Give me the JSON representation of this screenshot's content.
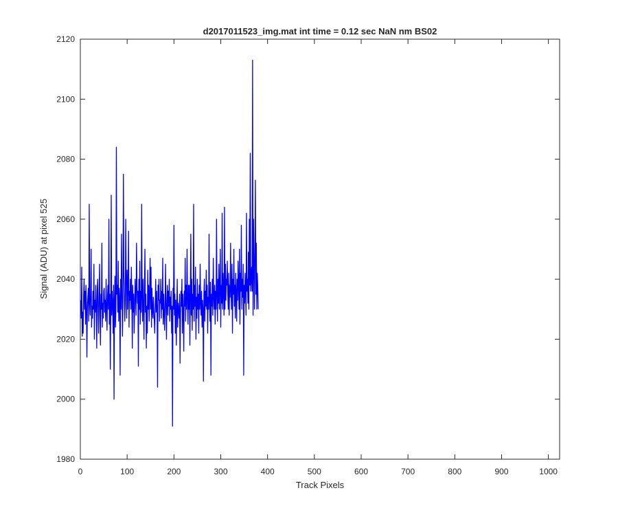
{
  "chart_data": {
    "type": "line",
    "title": "d2017011523_img.mat int time = 0.12 sec  NaN nm BS02",
    "xlabel": "Track Pixels",
    "ylabel": "Signal (ADU) at pixel 525",
    "xlim": [
      0,
      1024
    ],
    "ylim": [
      1980,
      2120
    ],
    "x_ticks": [
      0,
      100,
      200,
      300,
      400,
      500,
      600,
      700,
      800,
      900,
      1000
    ],
    "y_ticks": [
      1980,
      2000,
      2020,
      2040,
      2060,
      2080,
      2100,
      2120
    ],
    "grid": false,
    "series": [
      {
        "color": "#0000ff",
        "x_start": 1,
        "x_step": 1,
        "values": [
          2033,
          2027,
          2044,
          2021,
          2029,
          2022,
          2035,
          2040,
          2030,
          2036,
          2025,
          2038,
          2032,
          2014,
          2030,
          2034,
          2037,
          2026,
          2065,
          2032,
          2028,
          2035,
          2050,
          2024,
          2031,
          2027,
          2036,
          2030,
          2045,
          2020,
          2033,
          2029,
          2038,
          2031,
          2017,
          2036,
          2040,
          2030,
          2022,
          2034,
          2045,
          2028,
          2018,
          2035,
          2030,
          2052,
          2024,
          2032,
          2027,
          2036,
          2037,
          2029,
          2033,
          2026,
          2040,
          2031,
          2023,
          2034,
          2038,
          2030,
          2060,
          2025,
          2035,
          2010,
          2030,
          2068,
          2028,
          2036,
          2032,
          2022,
          2038,
          2000,
          2033,
          2041,
          2024,
          2030,
          2084,
          2035,
          2038,
          2029,
          2046,
          2026,
          2037,
          2034,
          2008,
          2040,
          2030,
          2055,
          2036,
          2021,
          2031,
          2075,
          2042,
          2035,
          2026,
          2033,
          2060,
          2040,
          2027,
          2043,
          2030,
          2037,
          2056,
          2024,
          2036,
          2033,
          2040,
          2030,
          2044,
          2034,
          2017,
          2038,
          2029,
          2035,
          2022,
          2030,
          2040,
          2034,
          2028,
          2052,
          2038,
          2032,
          2036,
          2011,
          2040,
          2030,
          2046,
          2025,
          2036,
          2029,
          2065,
          2034,
          2026,
          2040,
          2031,
          2020,
          2038,
          2050,
          2029,
          2035,
          2017,
          2031,
          2022,
          2043,
          2030,
          2038,
          2026,
          2035,
          2047,
          2030,
          2044,
          2024,
          2037,
          2030,
          2027,
          2034,
          2030,
          2026,
          2022,
          2032,
          2040,
          2029,
          2036,
          2030,
          2004,
          2038,
          2033,
          2040,
          2026,
          2033,
          2032,
          2040,
          2027,
          2036,
          2030,
          2047,
          2025,
          2035,
          2029,
          2023,
          2032,
          2045,
          2030,
          2020,
          2033,
          2038,
          2028,
          2036,
          2031,
          2040,
          2026,
          2034,
          2030,
          2036,
          2022,
          2031,
          1991,
          2037,
          2030,
          2058,
          2028,
          2035,
          2022,
          2033,
          2018,
          2030,
          2040,
          2024,
          2032,
          2030,
          2027,
          2035,
          2012,
          2028,
          2036,
          2031,
          2040,
          2022,
          2035,
          2029,
          2016,
          2036,
          2031,
          2047,
          2026,
          2038,
          2030,
          2050,
          2033,
          2025,
          2038,
          2030,
          2038,
          2018,
          2034,
          2055,
          2028,
          2040,
          2023,
          2035,
          2030,
          2065,
          2026,
          2038,
          2031,
          2044,
          2020,
          2034,
          2027,
          2040,
          2030,
          2035,
          2022,
          2038,
          2030,
          2045,
          2032,
          2028,
          2036,
          2024,
          2033,
          2030,
          2006,
          2035,
          2040,
          2026,
          2036,
          2031,
          2043,
          2030,
          2038,
          2022,
          2034,
          2030,
          2055,
          2033,
          2026,
          2039,
          2008,
          2035,
          2031,
          2040,
          2028,
          2047,
          2034,
          2030,
          2038,
          2025,
          2036,
          2030,
          2060,
          2035,
          2026,
          2040,
          2032,
          2045,
          2030,
          2037,
          2050,
          2024,
          2038,
          2032,
          2062,
          2030,
          2042,
          2036,
          2028,
          2064,
          2030,
          2045,
          2033,
          2040,
          2038,
          2046,
          2035,
          2030,
          2042,
          2028,
          2038,
          2034,
          2052,
          2036,
          2030,
          2045,
          2022,
          2040,
          2035,
          2050,
          2031,
          2038,
          2027,
          2042,
          2035,
          2026,
          2040,
          2033,
          2046,
          2038,
          2030,
          2050,
          2025,
          2042,
          2036,
          2058,
          2030,
          2040,
          2034,
          2045,
          2008,
          2038,
          2032,
          2042,
          2036,
          2028,
          2062,
          2036,
          2040,
          2032,
          2049,
          2030,
          2060,
          2038,
          2082,
          2036,
          2040,
          2044,
          2036,
          2113,
          2028,
          2060,
          2045,
          2030,
          2050,
          2073,
          2035,
          2052,
          2030,
          2042,
          2038,
          2030
        ]
      }
    ]
  }
}
